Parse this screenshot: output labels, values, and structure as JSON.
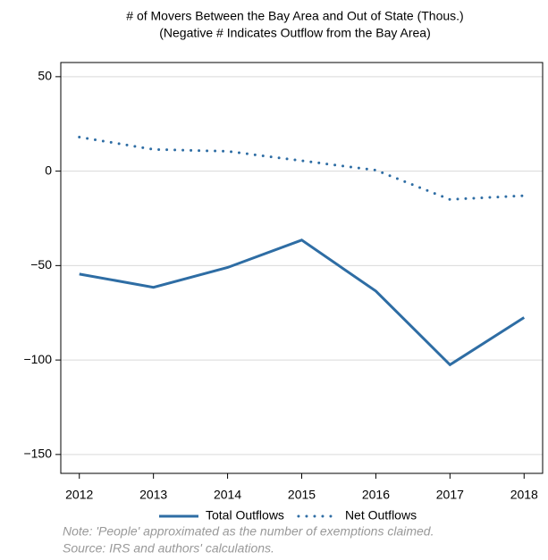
{
  "chart_data": {
    "type": "line",
    "title": "# of Movers Between the Bay Area and Out of State (Thous.)",
    "subtitle": "(Negative # Indicates Outflow from the Bay Area)",
    "x": [
      2012,
      2013,
      2014,
      2015,
      2016,
      2017,
      2018
    ],
    "series": [
      {
        "name": "Total Outflows",
        "color": "#2e6da4",
        "dash": "solid",
        "values": [
          -54.5,
          -61.5,
          -51,
          -36.5,
          -63.5,
          -102.5,
          -77.5
        ]
      },
      {
        "name": "Net Outflows",
        "color": "#2e6da4",
        "dash": "dotted",
        "values": [
          18,
          11.5,
          10.5,
          5.5,
          0.5,
          -15,
          -13
        ]
      }
    ],
    "xlim": [
      2011.75,
      2018.25
    ],
    "xticks": [
      2012,
      2013,
      2014,
      2015,
      2016,
      2017,
      2018
    ],
    "ylim": [
      -160,
      57.5
    ],
    "yticks": [
      {
        "value": -150,
        "label": "−150"
      },
      {
        "value": -100,
        "label": "−100"
      },
      {
        "value": -50,
        "label": "−50"
      },
      0,
      50
    ],
    "grid": true,
    "legend": "bottom",
    "note": "Note: 'People' approximated as the number of exemptions claimed.",
    "source": "Source: IRS and authors' calculations."
  }
}
